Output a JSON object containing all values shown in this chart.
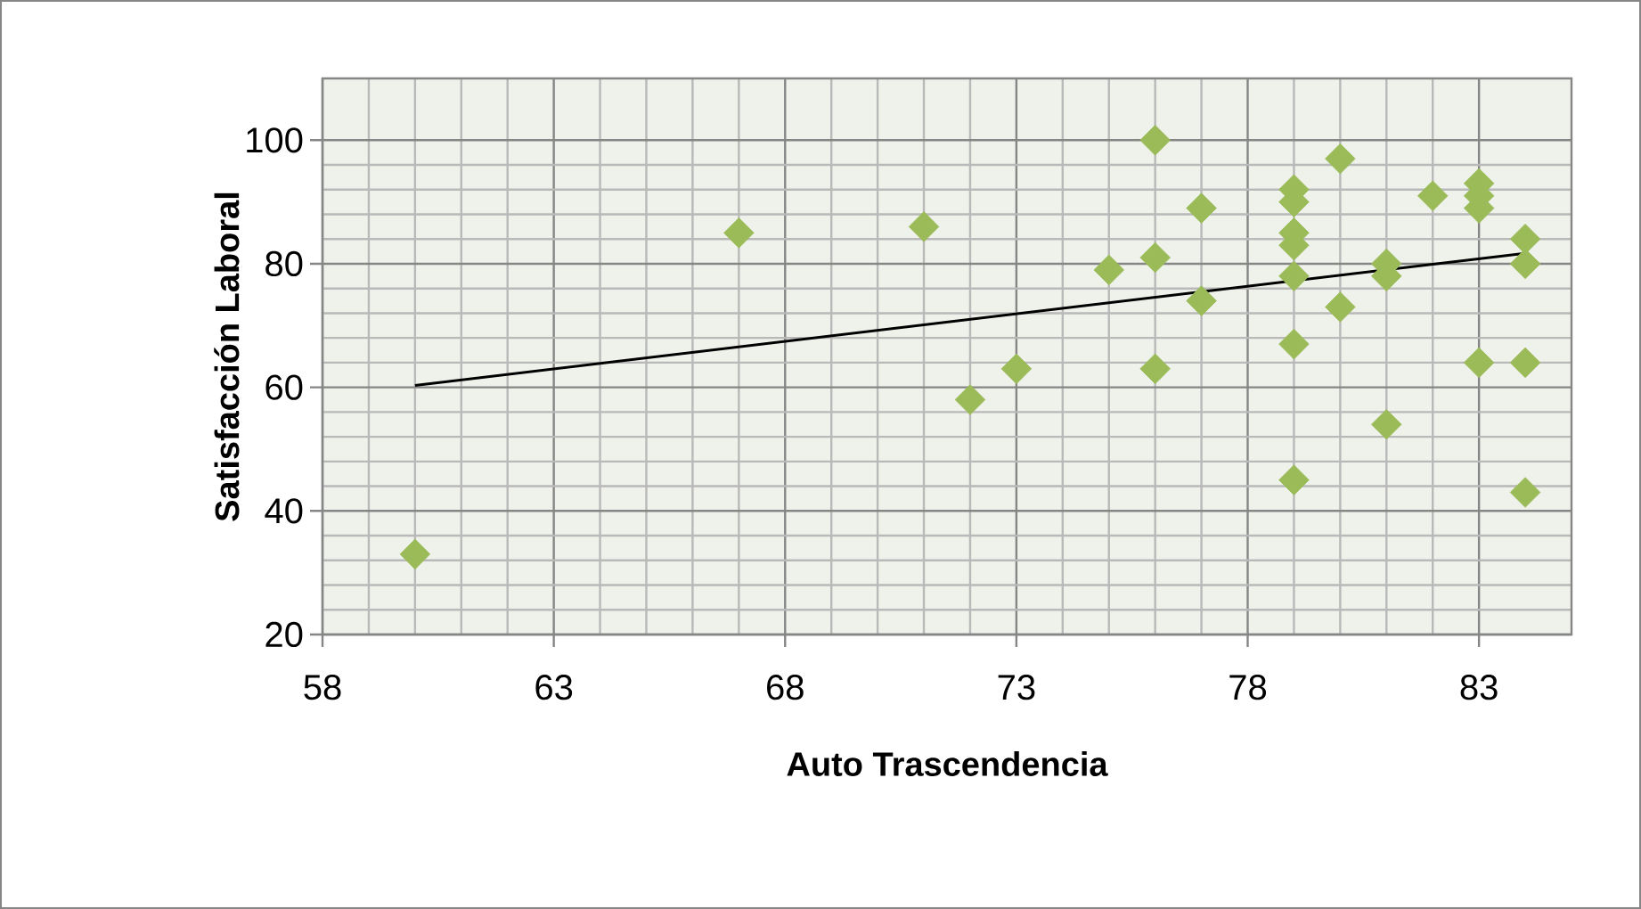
{
  "chart_data": {
    "type": "scatter",
    "xlabel": "Auto Trascendencia",
    "ylabel": "Satisfacción Laboral",
    "xlim": [
      58,
      85
    ],
    "ylim": [
      20,
      110
    ],
    "xticks": [
      58,
      63,
      68,
      73,
      78,
      83
    ],
    "yticks": [
      20,
      40,
      60,
      80,
      100
    ],
    "grid": true,
    "series": [
      {
        "type": "scatter",
        "color": "#9bbb59",
        "marker": "diamond",
        "x": [
          60,
          67,
          71,
          72,
          73,
          75,
          76,
          76,
          76,
          77,
          77,
          79,
          79,
          79,
          79,
          79,
          79,
          79,
          80,
          80,
          81,
          81,
          81,
          82,
          83,
          83,
          83,
          83,
          84,
          84,
          84,
          84
        ],
        "values": [
          33,
          85,
          86,
          58,
          63,
          79,
          100,
          81,
          63,
          89,
          74,
          92,
          90,
          85,
          83,
          78,
          67,
          45,
          97,
          73,
          80,
          78,
          54,
          91,
          93,
          91,
          89,
          64,
          84,
          80,
          64,
          43
        ]
      },
      {
        "type": "line",
        "color": "#000000",
        "marker": "none",
        "line_style": "solid",
        "x": [
          60,
          84
        ],
        "values": [
          60.3,
          81.7
        ]
      }
    ]
  }
}
